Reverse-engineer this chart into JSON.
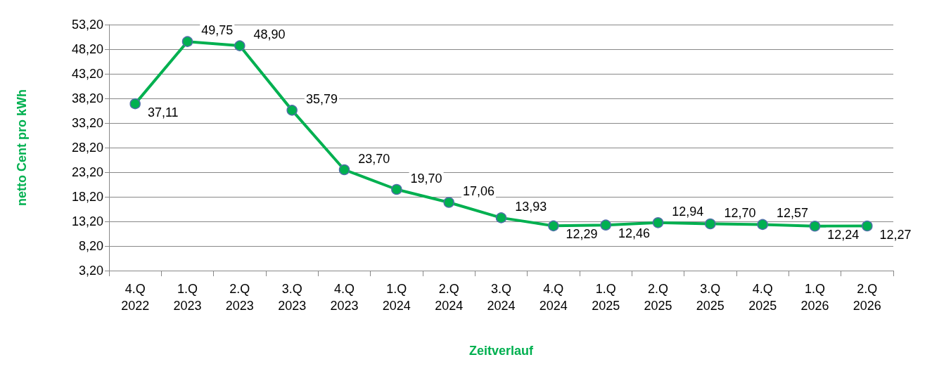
{
  "chart_data": {
    "type": "line",
    "xlabel": "Zeitverlauf",
    "ylabel": "netto Cent pro kWh",
    "categories": [
      "4.Q 2022",
      "1.Q 2023",
      "2.Q 2023",
      "3.Q 2023",
      "4.Q 2023",
      "1.Q 2024",
      "2.Q 2024",
      "3.Q 2024",
      "4.Q 2024",
      "1.Q 2025",
      "2.Q 2025",
      "3.Q 2025",
      "4.Q 2025",
      "1.Q 2026",
      "2.Q 2026"
    ],
    "series": [
      {
        "color": "#00b050",
        "values": [
          37.11,
          49.75,
          48.9,
          35.79,
          23.7,
          19.7,
          17.06,
          13.93,
          12.29,
          12.46,
          12.94,
          12.7,
          12.57,
          12.24,
          12.27
        ],
        "value_labels": [
          "37,11",
          "49,75",
          "48,90",
          "35,79",
          "23,70",
          "19,70",
          "17,06",
          "13,93",
          "12,29",
          "12,46",
          "12,94",
          "12,70",
          "12,57",
          "12,24",
          "12,27"
        ]
      }
    ],
    "ylim": [
      3.2,
      53.2
    ],
    "yticks": [
      {
        "value": 3.2,
        "label": "3,20"
      },
      {
        "value": 8.2,
        "label": "8,20"
      },
      {
        "value": 13.2,
        "label": "13,20"
      },
      {
        "value": 18.2,
        "label": "18,20"
      },
      {
        "value": 23.2,
        "label": "23,20"
      },
      {
        "value": 28.2,
        "label": "28,20"
      },
      {
        "value": 33.2,
        "label": "33,20"
      },
      {
        "value": 38.2,
        "label": "38,20"
      },
      {
        "value": 43.2,
        "label": "43,20"
      },
      {
        "value": 48.2,
        "label": "48,20"
      },
      {
        "value": 53.2,
        "label": "53,20"
      }
    ],
    "grid": "y",
    "marker": "circle",
    "line_style": "solid"
  }
}
